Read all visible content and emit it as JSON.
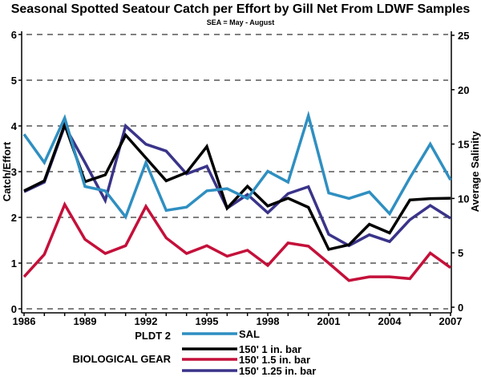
{
  "chart_data": {
    "type": "line",
    "title": "Seasonal Spotted Seatour Catch per Effort by Gill Net From LDWF Samples",
    "subtitle": "SEA = May - August",
    "xlabel": "",
    "ylabel": "Catch/Effort",
    "y2label": "Average Salinity",
    "xlim": [
      1986,
      2007
    ],
    "ylim": [
      0,
      6
    ],
    "y2lim": [
      0,
      25
    ],
    "grid": true,
    "x_ticks": [
      1986,
      1987,
      1988,
      1989,
      1990,
      1991,
      1992,
      1993,
      1994,
      1995,
      1996,
      1997,
      1998,
      1999,
      2000,
      2001,
      2002,
      2003,
      2004,
      2005,
      2006,
      2007
    ],
    "x_tick_labels": [
      "1986",
      "1989",
      "1992",
      "1995",
      "1998",
      "2001",
      "2004",
      "2007"
    ],
    "x_tick_label_values": [
      1986,
      1989,
      1992,
      1995,
      1998,
      2001,
      2004,
      2007
    ],
    "y_tick_labels": [
      "0",
      "1",
      "2",
      "3",
      "4",
      "5",
      "6"
    ],
    "y_tick_values": [
      0,
      1,
      2,
      3,
      4,
      5,
      6
    ],
    "y2_tick_labels": [
      "0",
      "5",
      "10",
      "15",
      "20",
      "25"
    ],
    "y2_tick_values": [
      0,
      5,
      10,
      15,
      20,
      25
    ],
    "x": [
      1986,
      1987,
      1988,
      1989,
      1990,
      1991,
      1992,
      1993,
      1994,
      1995,
      1996,
      1997,
      1998,
      1999,
      2000,
      2001,
      2002,
      2003,
      2004,
      2005,
      2006,
      2007
    ],
    "series": [
      {
        "name": "150' 1.5 in. bar",
        "axis": "left",
        "color": "#c4103a",
        "values": [
          0.7,
          1.19,
          2.28,
          1.52,
          1.21,
          1.38,
          2.24,
          1.55,
          1.21,
          1.38,
          1.15,
          1.28,
          0.95,
          1.44,
          1.37,
          1.0,
          0.62,
          0.7,
          0.7,
          0.66,
          1.22,
          0.9
        ]
      },
      {
        "name": "150' 1.25 in. bar",
        "axis": "left",
        "color": "#3a3489",
        "values": [
          2.56,
          2.77,
          4.0,
          3.2,
          2.37,
          4.0,
          3.6,
          3.45,
          2.95,
          3.12,
          2.2,
          2.5,
          2.1,
          2.52,
          2.67,
          1.63,
          1.38,
          1.62,
          1.47,
          1.95,
          2.26,
          1.98
        ]
      },
      {
        "name": "150' 1 in. bar",
        "axis": "left",
        "color": "#000000",
        "values": [
          2.58,
          2.8,
          4.03,
          2.78,
          2.93,
          3.8,
          3.3,
          2.8,
          2.98,
          3.55,
          2.2,
          2.68,
          2.25,
          2.42,
          2.22,
          1.3,
          1.4,
          1.85,
          1.66,
          2.38,
          2.41,
          2.42
        ]
      },
      {
        "name": "SAL",
        "axis": "right",
        "color": "#2f8fc1",
        "values": [
          15.9,
          13.3,
          17.4,
          11.1,
          10.7,
          8.3,
          13.3,
          8.9,
          9.2,
          10.7,
          10.9,
          10.0,
          12.5,
          11.5,
          17.6,
          10.5,
          10.0,
          10.6,
          8.6,
          11.9,
          15.0,
          11.7
        ]
      }
    ],
    "legend": {
      "placement": "bottom-center",
      "groups": [
        {
          "label": "PLDT 2",
          "entries": [
            {
              "name": "SAL",
              "color": "#2f8fc1"
            }
          ]
        },
        {
          "label": "BIOLOGICAL GEAR",
          "entries": [
            {
              "name": "150' 1 in. bar",
              "color": "#000000"
            },
            {
              "name": "150' 1.5 in. bar",
              "color": "#c4103a"
            },
            {
              "name": "150' 1.25 in. bar",
              "color": "#3a3489"
            }
          ]
        }
      ]
    }
  }
}
